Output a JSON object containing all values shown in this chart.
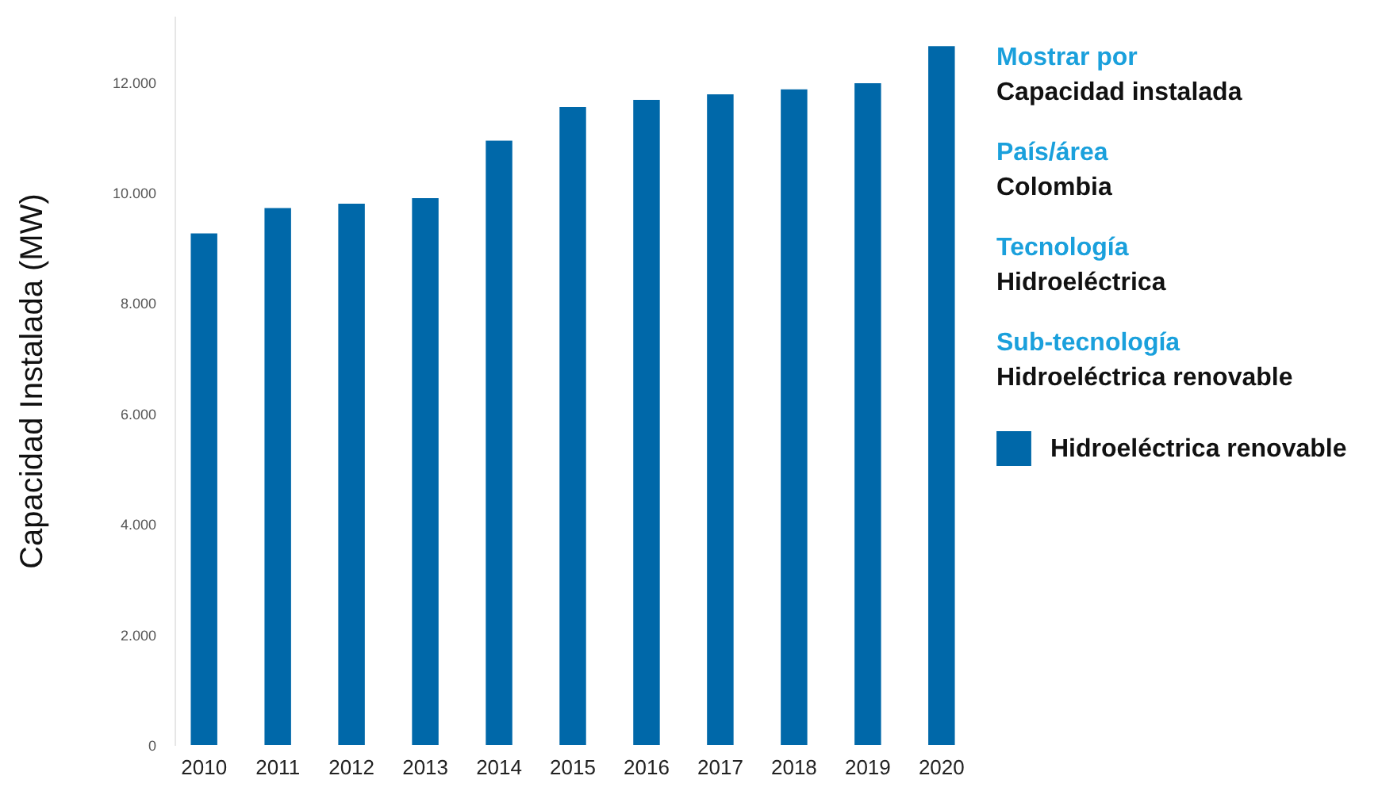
{
  "chart_data": {
    "type": "bar",
    "ylabel": "Capacidad Instalada (MW)",
    "categories": [
      "2010",
      "2011",
      "2012",
      "2013",
      "2014",
      "2015",
      "2016",
      "2017",
      "2018",
      "2019",
      "2020"
    ],
    "series": [
      {
        "name": "Hidroeléctrica renovable",
        "color": "#0068a9",
        "values": [
          9260,
          9720,
          9800,
          9900,
          10940,
          11550,
          11680,
          11780,
          11870,
          11980,
          12650
        ]
      }
    ],
    "ylim": [
      0,
      13200
    ],
    "yticks": [
      {
        "value": 0,
        "label": "0"
      },
      {
        "value": 2000,
        "label": "2.000"
      },
      {
        "value": 4000,
        "label": "4.000"
      },
      {
        "value": 6000,
        "label": "6.000"
      },
      {
        "value": 8000,
        "label": "8.000"
      },
      {
        "value": 10000,
        "label": "10.000"
      },
      {
        "value": 12000,
        "label": "12.000"
      }
    ],
    "annotations": [
      "Mostrar por",
      "Capacidad instalada",
      "País/área",
      "Colombia",
      "Tecnología",
      "Hidroeléctrica",
      "Sub-tecnología",
      "Hidroeléctrica renovable"
    ],
    "legend": "right",
    "grid": false
  }
}
